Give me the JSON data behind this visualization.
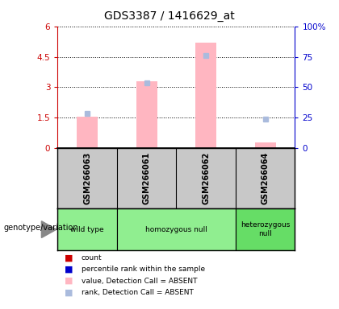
{
  "title": "GDS3387 / 1416629_at",
  "samples": [
    "GSM266063",
    "GSM266061",
    "GSM266062",
    "GSM266064"
  ],
  "genotype_groups": [
    {
      "label": "wild type",
      "col_indices": [
        0
      ],
      "color": "#90EE90"
    },
    {
      "label": "homozygous null",
      "col_indices": [
        1,
        2
      ],
      "color": "#90EE90"
    },
    {
      "label": "heterozygous\nnull",
      "col_indices": [
        3
      ],
      "color": "#66DD66"
    }
  ],
  "absent_bar_values": [
    1.55,
    3.3,
    5.2,
    0.28
  ],
  "absent_rank_values": [
    1.72,
    3.22,
    4.55,
    1.42
  ],
  "left_ylim": [
    0,
    6
  ],
  "left_yticks": [
    0,
    1.5,
    3,
    4.5,
    6
  ],
  "left_yticklabels": [
    "0",
    "1.5",
    "3",
    "4.5",
    "6"
  ],
  "right_ylim": [
    0,
    100
  ],
  "right_yticks": [
    0,
    25,
    50,
    75,
    100
  ],
  "right_yticklabels": [
    "0",
    "25",
    "50",
    "75",
    "100%"
  ],
  "absent_bar_color": "#FFB6C1",
  "absent_rank_color": "#AABBDD",
  "label_color_left": "#CC0000",
  "label_color_right": "#0000CC",
  "sample_bg_color": "#C8C8C8",
  "bg_color": "#FFFFFF",
  "legend_items": [
    {
      "label": "count",
      "color": "#CC0000"
    },
    {
      "label": "percentile rank within the sample",
      "color": "#0000CC"
    },
    {
      "label": "value, Detection Call = ABSENT",
      "color": "#FFB6C1"
    },
    {
      "label": "rank, Detection Call = ABSENT",
      "color": "#AABBDD"
    }
  ]
}
